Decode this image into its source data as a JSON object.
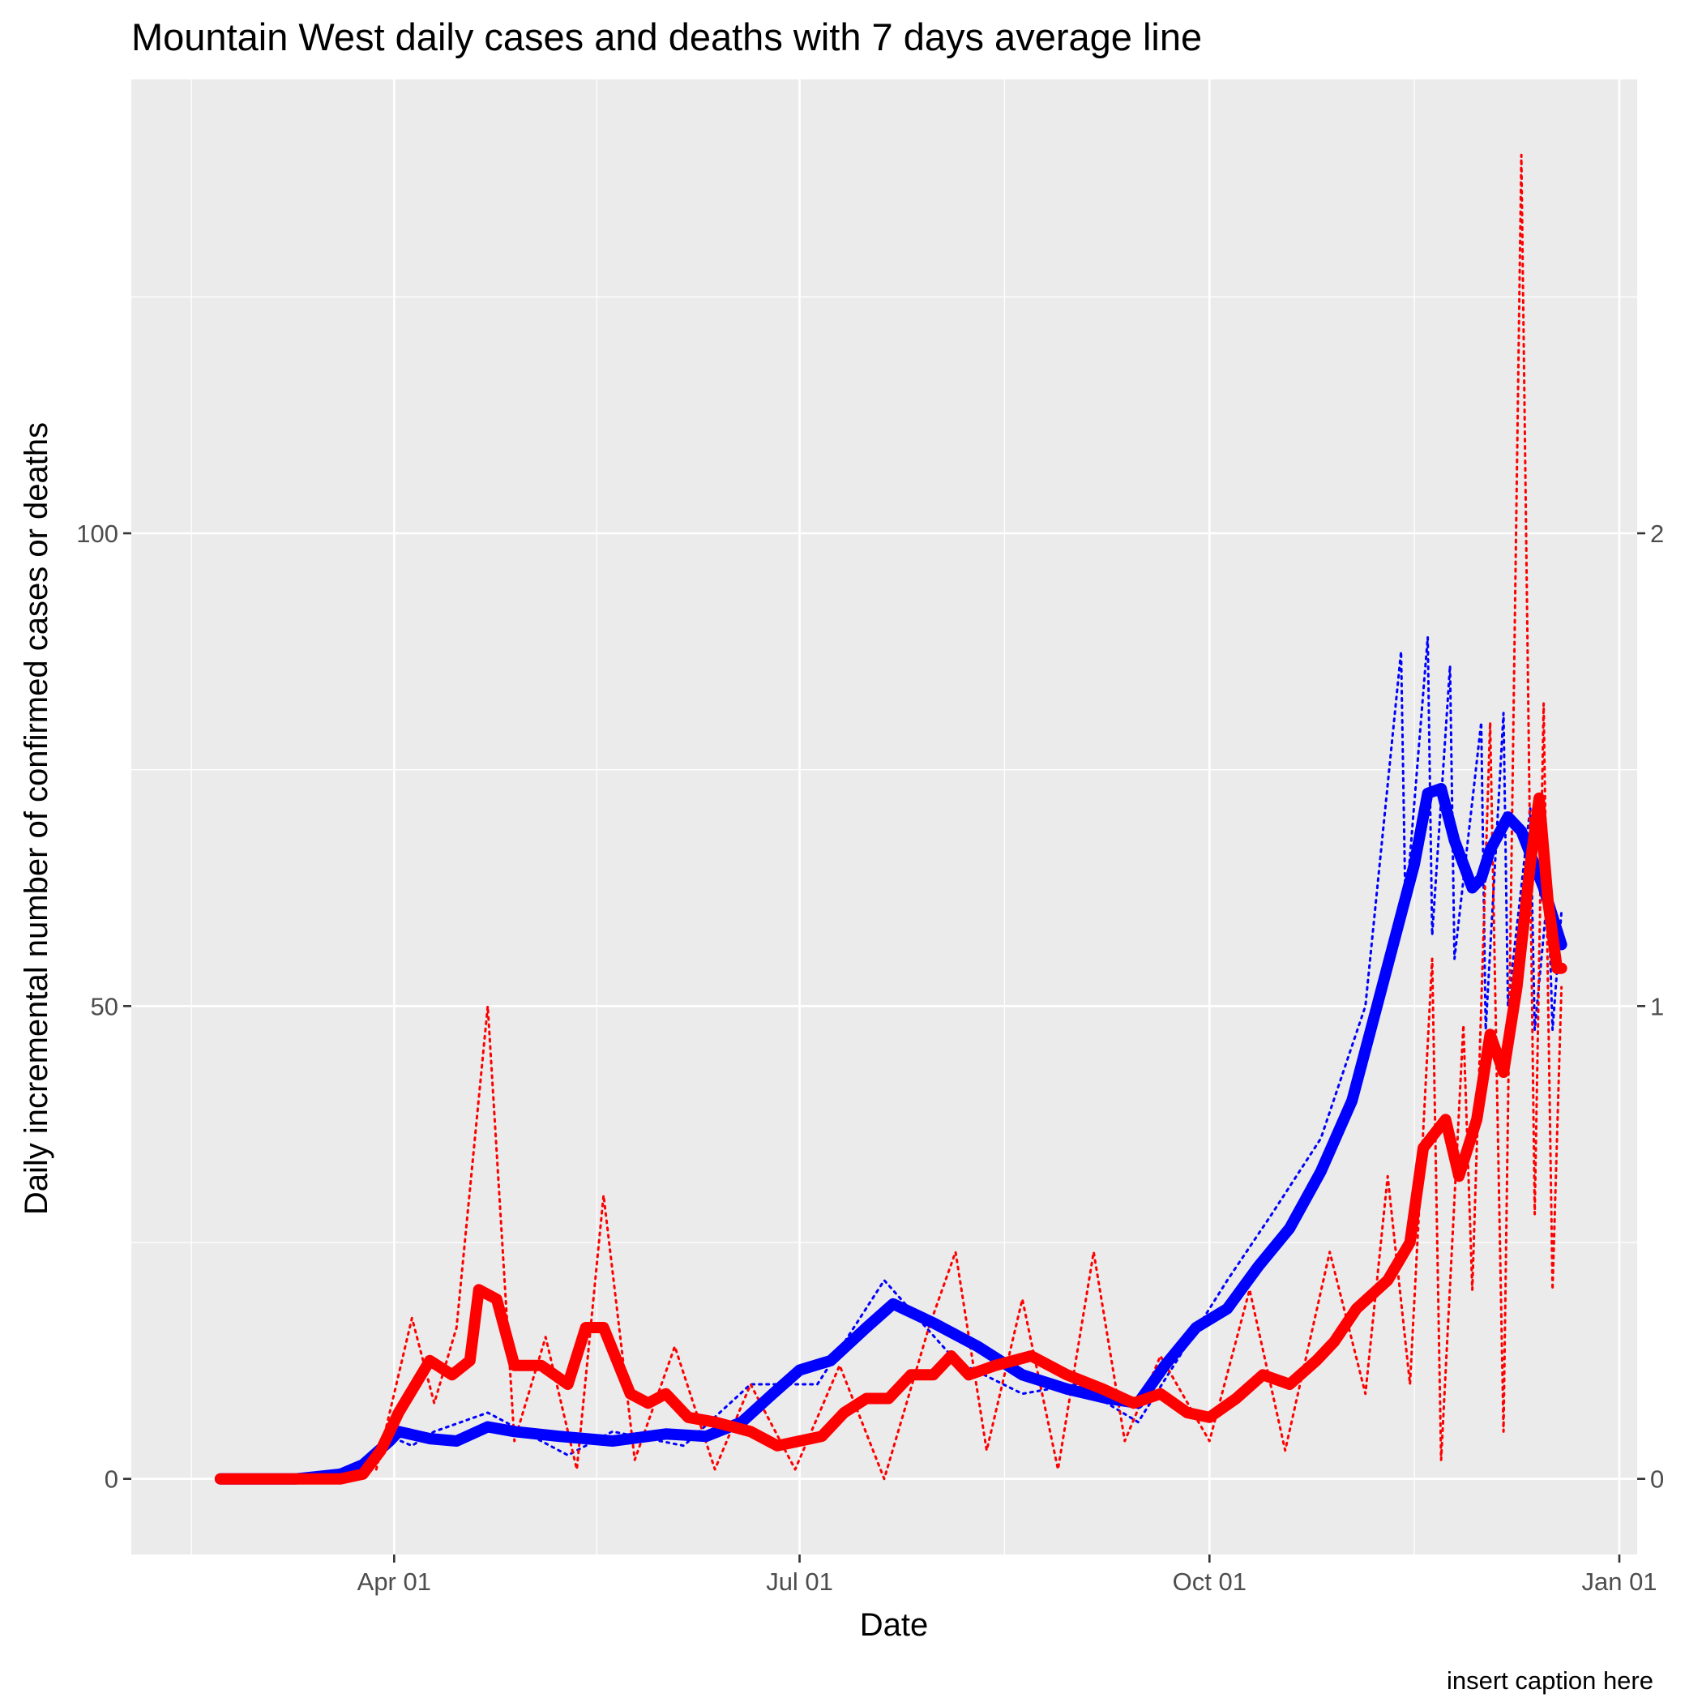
{
  "chart_data": {
    "type": "line",
    "title": "Mountain West daily cases and deaths with 7 days average line",
    "xlabel": "Date",
    "ylabel": "Daily incremental number of confirmed cases or deaths",
    "caption": "insert caption here",
    "x_range": [
      "2020-02-02",
      "2021-01-05"
    ],
    "x_ticks": [
      {
        "date": "2020-04-01",
        "label": "Apr 01"
      },
      {
        "date": "2020-07-01",
        "label": "Jul 01"
      },
      {
        "date": "2020-10-01",
        "label": "Oct 01"
      },
      {
        "date": "2021-01-01",
        "label": "Jan 01"
      }
    ],
    "y_left": {
      "range": [
        -8,
        148
      ],
      "ticks": [
        0,
        50,
        100
      ]
    },
    "y_right": {
      "range": [
        -0.16,
        2.96
      ],
      "ticks": [
        0,
        1,
        2
      ]
    },
    "grid": true,
    "legend": "none",
    "series": [
      {
        "color": "#0000ff",
        "axis": "right",
        "style": "solid-thick",
        "points": [
          [
            "2020-02-22",
            0
          ],
          [
            "2020-03-10",
            0
          ],
          [
            "2020-03-20",
            0.01
          ],
          [
            "2020-03-25",
            0.03
          ],
          [
            "2020-03-31",
            0.08
          ],
          [
            "2020-04-02",
            0.1
          ],
          [
            "2020-04-09",
            0.085
          ],
          [
            "2020-04-15",
            0.08
          ],
          [
            "2020-04-22",
            0.11
          ],
          [
            "2020-04-28",
            0.1
          ],
          [
            "2020-05-08",
            0.09
          ],
          [
            "2020-05-20",
            0.08
          ],
          [
            "2020-06-01",
            0.095
          ],
          [
            "2020-06-10",
            0.09
          ],
          [
            "2020-06-18",
            0.12
          ],
          [
            "2020-06-25",
            0.18
          ],
          [
            "2020-07-01",
            0.23
          ],
          [
            "2020-07-08",
            0.25
          ],
          [
            "2020-07-16",
            0.32
          ],
          [
            "2020-07-22",
            0.37
          ],
          [
            "2020-07-31",
            0.33
          ],
          [
            "2020-08-10",
            0.28
          ],
          [
            "2020-08-20",
            0.22
          ],
          [
            "2020-08-30",
            0.19
          ],
          [
            "2020-09-08",
            0.17
          ],
          [
            "2020-09-15",
            0.16
          ],
          [
            "2020-09-21",
            0.24
          ],
          [
            "2020-09-28",
            0.32
          ],
          [
            "2020-10-05",
            0.36
          ],
          [
            "2020-10-12",
            0.45
          ],
          [
            "2020-10-19",
            0.53
          ],
          [
            "2020-10-26",
            0.65
          ],
          [
            "2020-11-02",
            0.8
          ],
          [
            "2020-11-09",
            1.05
          ],
          [
            "2020-11-16",
            1.3
          ],
          [
            "2020-11-19",
            1.45
          ],
          [
            "2020-11-22",
            1.46
          ],
          [
            "2020-11-25",
            1.35
          ],
          [
            "2020-11-29",
            1.25
          ],
          [
            "2020-12-01",
            1.27
          ],
          [
            "2020-12-03",
            1.33
          ],
          [
            "2020-12-07",
            1.4
          ],
          [
            "2020-12-10",
            1.37
          ],
          [
            "2020-12-15",
            1.25
          ],
          [
            "2020-12-19",
            1.13
          ]
        ]
      },
      {
        "color": "#ff0000",
        "axis": "left",
        "style": "solid-thick",
        "points": [
          [
            "2020-02-22",
            0
          ],
          [
            "2020-03-20",
            0
          ],
          [
            "2020-03-25",
            0.5
          ],
          [
            "2020-03-29",
            3
          ],
          [
            "2020-04-02",
            7
          ],
          [
            "2020-04-09",
            12.5
          ],
          [
            "2020-04-14",
            11
          ],
          [
            "2020-04-18",
            12.5
          ],
          [
            "2020-04-20",
            20
          ],
          [
            "2020-04-24",
            19
          ],
          [
            "2020-04-28",
            12
          ],
          [
            "2020-05-04",
            12
          ],
          [
            "2020-05-10",
            10
          ],
          [
            "2020-05-14",
            16
          ],
          [
            "2020-05-18",
            16
          ],
          [
            "2020-05-24",
            9
          ],
          [
            "2020-05-28",
            8
          ],
          [
            "2020-06-01",
            9
          ],
          [
            "2020-06-06",
            6.5
          ],
          [
            "2020-06-12",
            6
          ],
          [
            "2020-06-20",
            5
          ],
          [
            "2020-06-26",
            3.5
          ],
          [
            "2020-07-01",
            4
          ],
          [
            "2020-07-06",
            4.5
          ],
          [
            "2020-07-11",
            7
          ],
          [
            "2020-07-16",
            8.5
          ],
          [
            "2020-07-21",
            8.5
          ],
          [
            "2020-07-26",
            11
          ],
          [
            "2020-07-31",
            11
          ],
          [
            "2020-08-04",
            13
          ],
          [
            "2020-08-08",
            11
          ],
          [
            "2020-08-14",
            12
          ],
          [
            "2020-08-22",
            13
          ],
          [
            "2020-08-30",
            11
          ],
          [
            "2020-09-07",
            9.5
          ],
          [
            "2020-09-14",
            8
          ],
          [
            "2020-09-20",
            9
          ],
          [
            "2020-09-26",
            7
          ],
          [
            "2020-10-01",
            6.5
          ],
          [
            "2020-10-07",
            8.5
          ],
          [
            "2020-10-13",
            11
          ],
          [
            "2020-10-19",
            10
          ],
          [
            "2020-10-25",
            12.5
          ],
          [
            "2020-10-29",
            14.5
          ],
          [
            "2020-11-03",
            18
          ],
          [
            "2020-11-10",
            21
          ],
          [
            "2020-11-15",
            25
          ],
          [
            "2020-11-18",
            35
          ],
          [
            "2020-11-23",
            38
          ],
          [
            "2020-11-26",
            32
          ],
          [
            "2020-11-30",
            38
          ],
          [
            "2020-12-03",
            47
          ],
          [
            "2020-12-06",
            43
          ],
          [
            "2020-12-09",
            52
          ],
          [
            "2020-12-12",
            65
          ],
          [
            "2020-12-14",
            72
          ],
          [
            "2020-12-16",
            61
          ],
          [
            "2020-12-18",
            54
          ],
          [
            "2020-12-19",
            54
          ]
        ]
      }
    ],
    "daily_series": [
      {
        "color": "#0000ff",
        "axis": "right",
        "style": "dotted",
        "points": [
          [
            "2020-03-25",
            0.03
          ],
          [
            "2020-03-31",
            0.09
          ],
          [
            "2020-04-05",
            0.07
          ],
          [
            "2020-04-10",
            0.1
          ],
          [
            "2020-04-22",
            0.14
          ],
          [
            "2020-05-10",
            0.05
          ],
          [
            "2020-05-20",
            0.1
          ],
          [
            "2020-06-05",
            0.07
          ],
          [
            "2020-06-20",
            0.2
          ],
          [
            "2020-07-05",
            0.2
          ],
          [
            "2020-07-20",
            0.42
          ],
          [
            "2020-08-05",
            0.25
          ],
          [
            "2020-08-20",
            0.18
          ],
          [
            "2020-09-01",
            0.2
          ],
          [
            "2020-09-15",
            0.12
          ],
          [
            "2020-10-05",
            0.42
          ],
          [
            "2020-10-15",
            0.56
          ],
          [
            "2020-10-26",
            0.72
          ],
          [
            "2020-11-05",
            1.0
          ],
          [
            "2020-11-13",
            1.75
          ],
          [
            "2020-11-14",
            1.2
          ],
          [
            "2020-11-19",
            1.78
          ],
          [
            "2020-11-20",
            1.15
          ],
          [
            "2020-11-24",
            1.72
          ],
          [
            "2020-11-25",
            1.1
          ],
          [
            "2020-12-01",
            1.6
          ],
          [
            "2020-12-02",
            0.95
          ],
          [
            "2020-12-06",
            1.62
          ],
          [
            "2020-12-07",
            1.0
          ],
          [
            "2020-12-12",
            1.42
          ],
          [
            "2020-12-13",
            0.95
          ],
          [
            "2020-12-16",
            1.25
          ],
          [
            "2020-12-17",
            0.95
          ],
          [
            "2020-12-19",
            1.2
          ]
        ]
      },
      {
        "color": "#ff0000",
        "axis": "left",
        "style": "dotted",
        "points": [
          [
            "2020-03-28",
            1
          ],
          [
            "2020-04-05",
            17
          ],
          [
            "2020-04-10",
            8
          ],
          [
            "2020-04-15",
            16
          ],
          [
            "2020-04-22",
            50
          ],
          [
            "2020-04-28",
            4
          ],
          [
            "2020-05-05",
            15
          ],
          [
            "2020-05-12",
            1
          ],
          [
            "2020-05-18",
            30
          ],
          [
            "2020-05-25",
            2
          ],
          [
            "2020-06-03",
            14
          ],
          [
            "2020-06-12",
            1
          ],
          [
            "2020-06-20",
            10
          ],
          [
            "2020-06-30",
            1
          ],
          [
            "2020-07-10",
            12
          ],
          [
            "2020-07-20",
            0
          ],
          [
            "2020-07-30",
            16
          ],
          [
            "2020-08-05",
            24
          ],
          [
            "2020-08-12",
            3
          ],
          [
            "2020-08-20",
            19
          ],
          [
            "2020-08-28",
            1
          ],
          [
            "2020-09-05",
            24
          ],
          [
            "2020-09-12",
            4
          ],
          [
            "2020-09-20",
            13
          ],
          [
            "2020-10-01",
            4
          ],
          [
            "2020-10-10",
            20
          ],
          [
            "2020-10-18",
            3
          ],
          [
            "2020-10-28",
            24
          ],
          [
            "2020-11-05",
            9
          ],
          [
            "2020-11-10",
            32
          ],
          [
            "2020-11-15",
            10
          ],
          [
            "2020-11-20",
            55
          ],
          [
            "2020-11-22",
            2
          ],
          [
            "2020-11-27",
            48
          ],
          [
            "2020-11-29",
            20
          ],
          [
            "2020-12-03",
            80
          ],
          [
            "2020-12-06",
            5
          ],
          [
            "2020-12-10",
            140
          ],
          [
            "2020-12-13",
            28
          ],
          [
            "2020-12-15",
            82
          ],
          [
            "2020-12-17",
            20
          ],
          [
            "2020-12-19",
            52
          ]
        ]
      }
    ]
  }
}
